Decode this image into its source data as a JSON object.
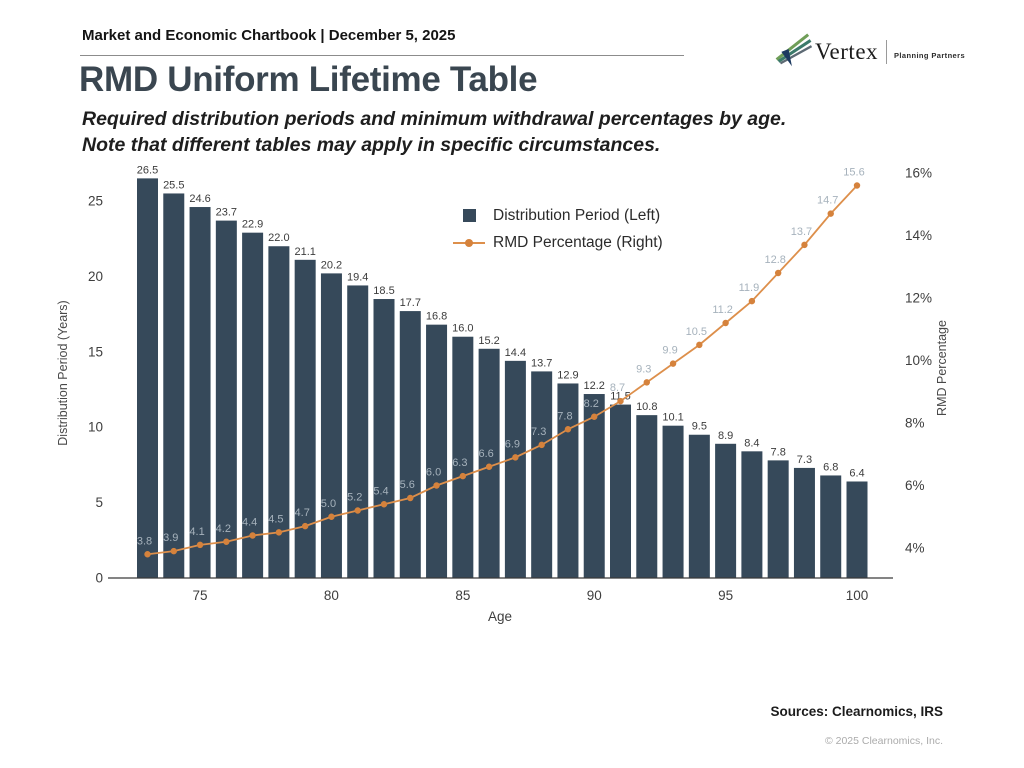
{
  "header": {
    "chartbook_label": "Market and Economic Chartbook | December 5, 2025"
  },
  "logo": {
    "brand": "Vertex",
    "tagline": "Planning Partners"
  },
  "title": "RMD Uniform Lifetime Table",
  "subtitle_line1": "Required distribution periods and minimum withdrawal percentages by age.",
  "subtitle_line2": "Note that different tables may apply in specific circumstances.",
  "footer": {
    "sources": "Sources: Clearnomics, IRS",
    "copyright": "© 2025 Clearnomics, Inc."
  },
  "colors": {
    "bar": "#36495a",
    "bar_label": "#3c3c3c",
    "line": "#dd8f4b",
    "line_marker": "#d5823c",
    "line_label": "#a6b2bc",
    "axis_text": "#3e3e3e",
    "axis_title": "#484848",
    "axis_line": "#3a3a3a"
  },
  "chart_data": {
    "type": "bar+line",
    "title": "RMD Uniform Lifetime Table",
    "xlabel": "Age",
    "grid": false,
    "legend_position": "top-center-inside",
    "x": [
      73,
      74,
      75,
      76,
      77,
      78,
      79,
      80,
      81,
      82,
      83,
      84,
      85,
      86,
      87,
      88,
      89,
      90,
      91,
      92,
      93,
      94,
      95,
      96,
      97,
      98,
      99,
      100
    ],
    "x_ticks": [
      75,
      80,
      85,
      90,
      95,
      100
    ],
    "left_axis": {
      "label": "Distribution Period (Years)",
      "ticks": [
        0,
        5,
        10,
        15,
        20,
        25
      ],
      "range": [
        0,
        26.5
      ]
    },
    "right_axis": {
      "label": "RMD Percentage",
      "ticks": [
        "4%",
        "6%",
        "8%",
        "10%",
        "12%",
        "14%",
        "16%"
      ],
      "range_pct": [
        4,
        16
      ]
    },
    "series": [
      {
        "name": "Distribution Period (Left)",
        "type": "bar",
        "axis": "left",
        "values": [
          26.5,
          25.5,
          24.6,
          23.7,
          22.9,
          22.0,
          21.1,
          20.2,
          19.4,
          18.5,
          17.7,
          16.8,
          16.0,
          15.2,
          14.4,
          13.7,
          12.9,
          12.2,
          11.5,
          10.8,
          10.1,
          9.5,
          8.9,
          8.4,
          7.8,
          7.3,
          6.8,
          6.4
        ]
      },
      {
        "name": "RMD Percentage (Right)",
        "type": "line",
        "axis": "right",
        "values": [
          3.8,
          3.9,
          4.1,
          4.2,
          4.4,
          4.5,
          4.7,
          5.0,
          5.2,
          5.4,
          5.6,
          6.0,
          6.3,
          6.6,
          6.9,
          7.3,
          7.8,
          8.2,
          8.7,
          9.3,
          9.9,
          10.5,
          11.2,
          11.9,
          12.8,
          13.7,
          14.7,
          15.6
        ]
      }
    ]
  }
}
